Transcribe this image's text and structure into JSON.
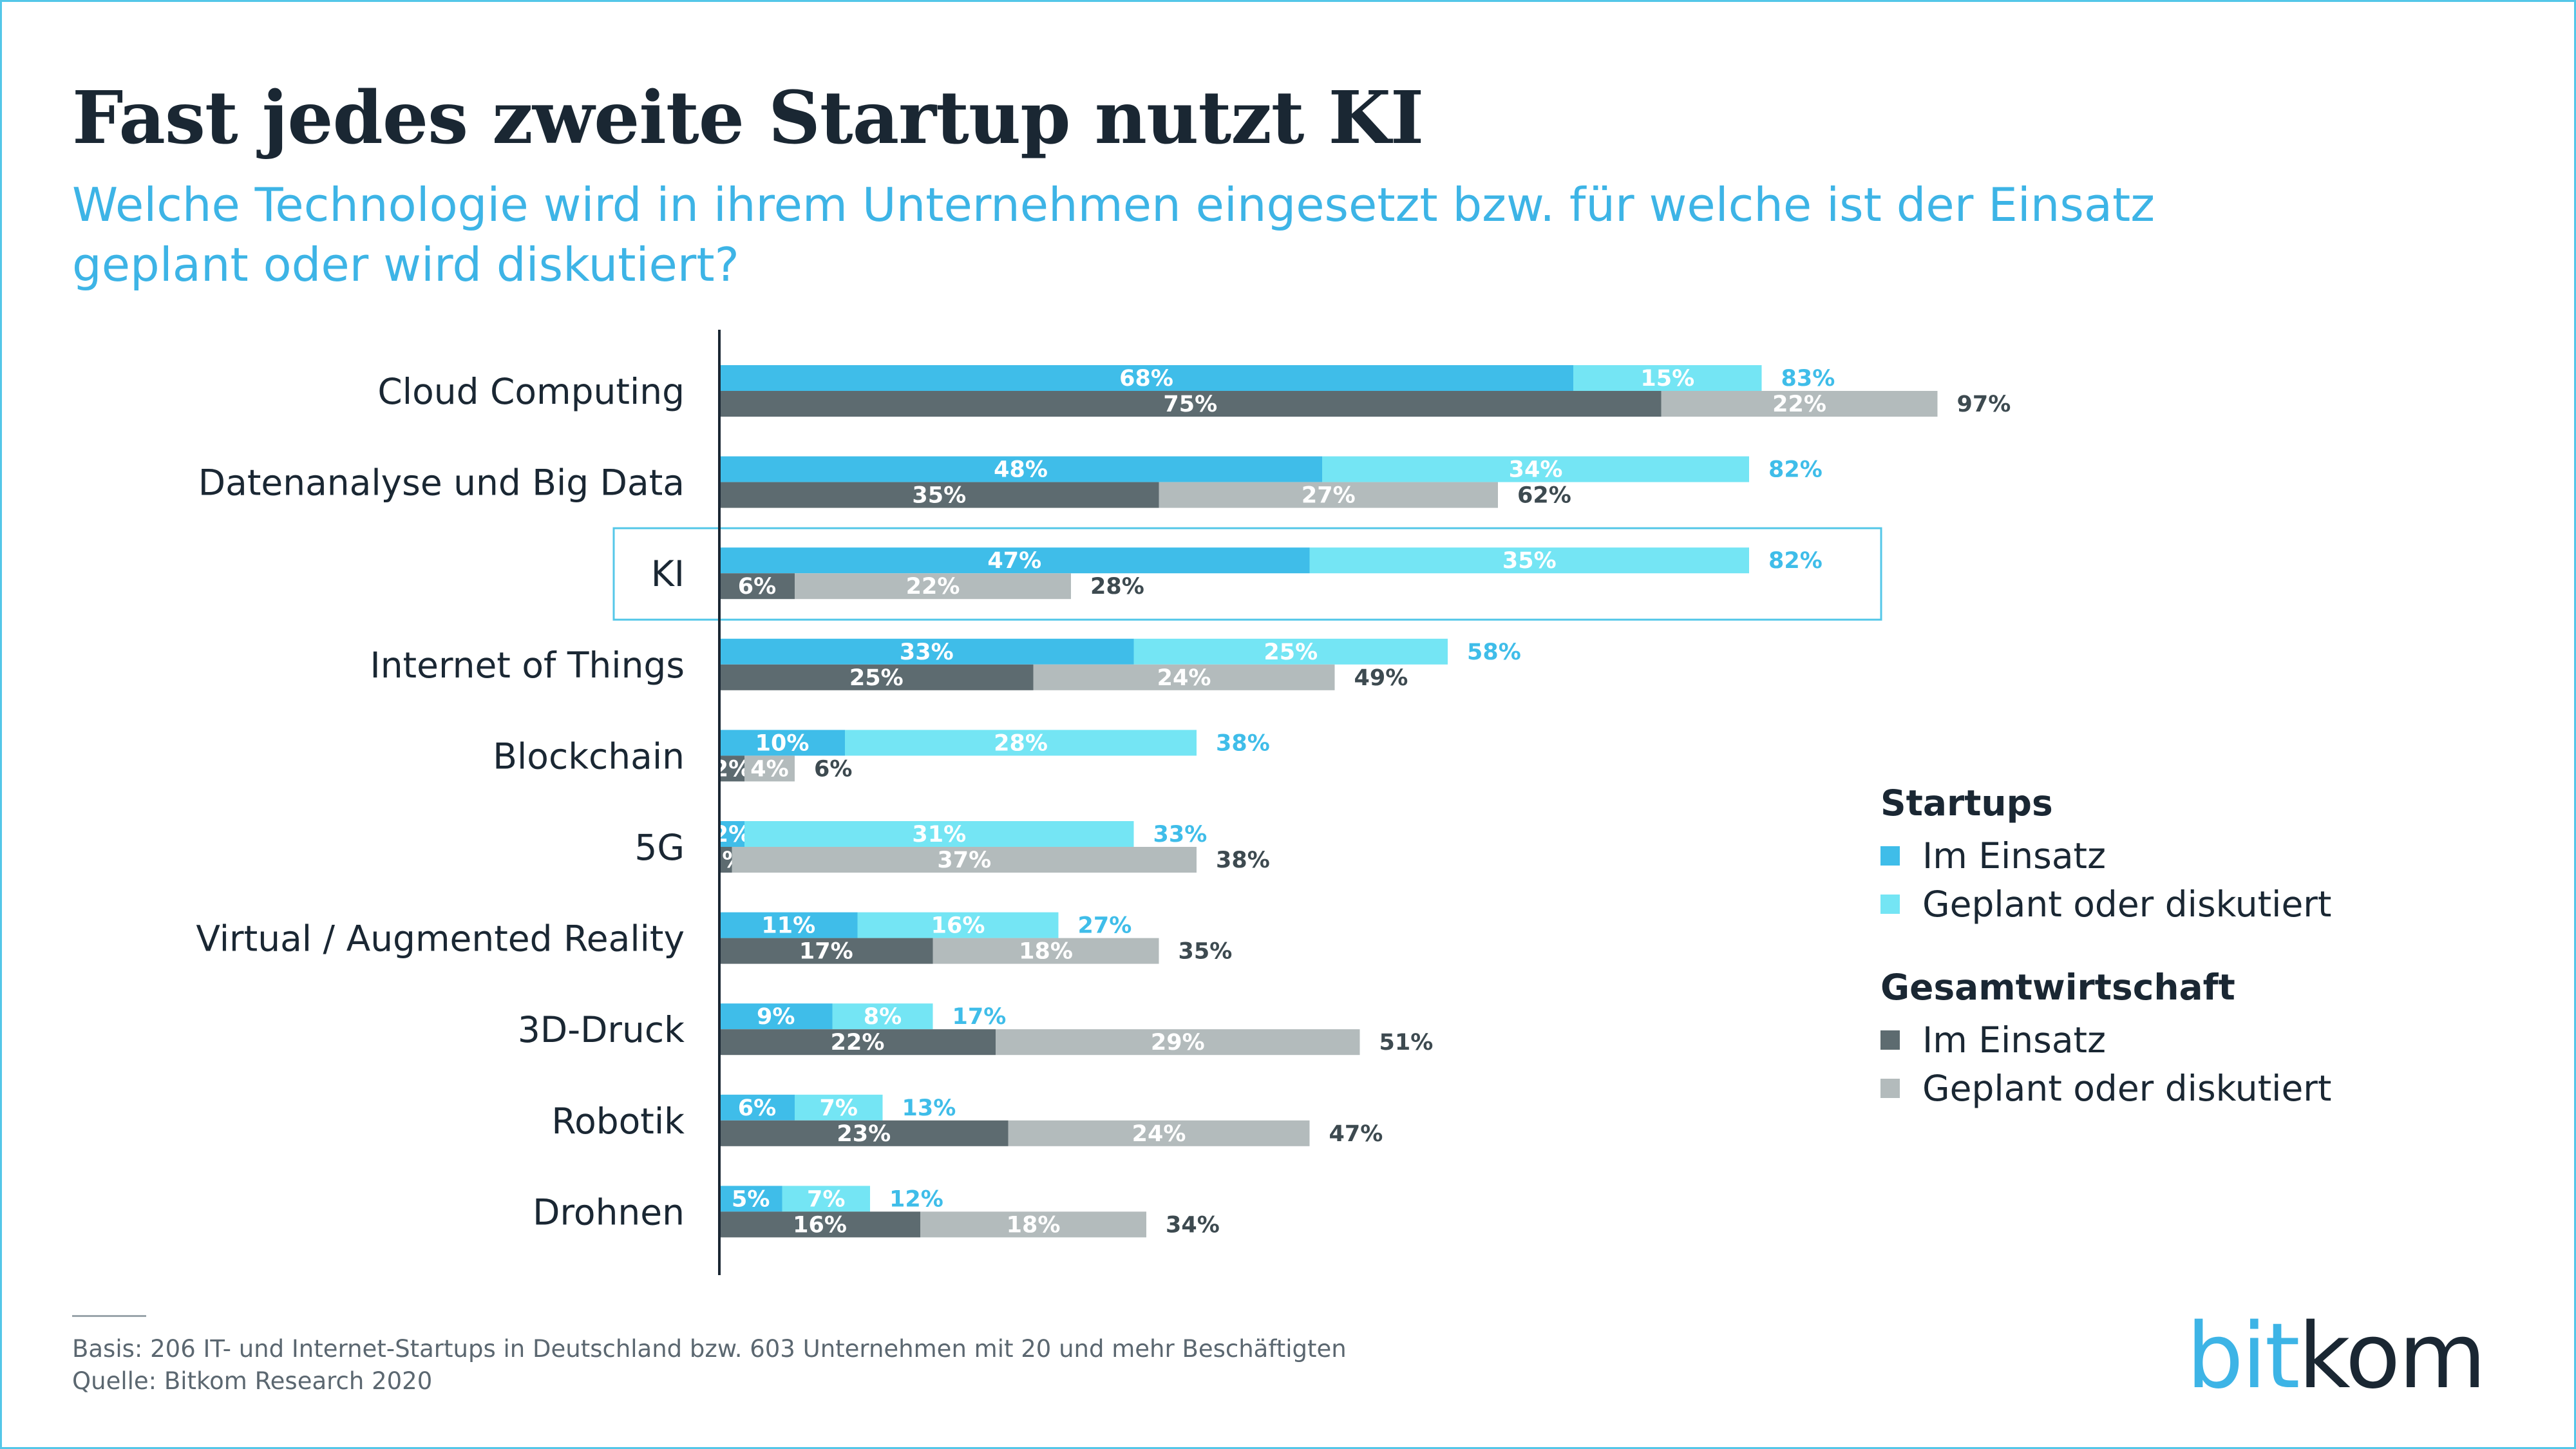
{
  "title": "Fast jedes zweite Startup nutzt KI",
  "subtitle": "Welche Technologie wird in ihrem Unternehmen eingesetzt bzw. für welche ist der Einsatz geplant oder wird diskutiert?",
  "chart_data": {
    "type": "bar",
    "orientation": "horizontal",
    "stacked": true,
    "highlighted_category": "KI",
    "categories": [
      "Cloud Computing",
      "Datenanalyse und Big Data",
      "KI",
      "Internet of Things",
      "Blockchain",
      "5G",
      "Virtual / Augmented Reality",
      "3D-Druck",
      "Robotik",
      "Drohnen"
    ],
    "groups": [
      {
        "name": "Startups",
        "series": [
          {
            "name": "Im Einsatz",
            "color": "#3fbde9",
            "values": [
              68,
              48,
              47,
              33,
              10,
              2,
              11,
              9,
              6,
              5
            ]
          },
          {
            "name": "Geplant oder diskutiert",
            "color": "#74e5f4",
            "values": [
              15,
              34,
              35,
              25,
              28,
              31,
              16,
              8,
              7,
              7
            ]
          }
        ],
        "totals": [
          83,
          82,
          82,
          58,
          38,
          33,
          27,
          17,
          13,
          12
        ],
        "total_color": "#3fbde9"
      },
      {
        "name": "Gesamtwirtschaft",
        "series": [
          {
            "name": "Im Einsatz",
            "color": "#5d6b70",
            "values": [
              75,
              35,
              6,
              25,
              2,
              1,
              17,
              22,
              23,
              16
            ]
          },
          {
            "name": "Geplant oder diskutiert",
            "color": "#b3bbbc",
            "values": [
              22,
              27,
              22,
              24,
              4,
              37,
              18,
              29,
              24,
              18
            ]
          }
        ],
        "totals": [
          97,
          62,
          28,
          49,
          6,
          38,
          35,
          51,
          47,
          34
        ],
        "total_color": "#3d4a50"
      }
    ],
    "value_suffix": "%",
    "xlim": [
      0,
      100
    ],
    "grid": false,
    "legend_position": "right"
  },
  "legend": {
    "groups": [
      {
        "title": "Startups",
        "items": [
          {
            "label": "Im Einsatz",
            "color": "#3fbde9"
          },
          {
            "label": "Geplant oder diskutiert",
            "color": "#74e5f4"
          }
        ]
      },
      {
        "title": "Gesamtwirtschaft",
        "items": [
          {
            "label": "Im Einsatz",
            "color": "#5d6b70"
          },
          {
            "label": "Geplant oder diskutiert",
            "color": "#b3bbbc"
          }
        ]
      }
    ]
  },
  "footnote": {
    "line1": "Basis: 206 IT- und Internet-Startups in Deutschland bzw. 603 Unternehmen mit 20 und mehr Beschäftigten",
    "line2": "Quelle: Bitkom Research 2020"
  },
  "logo": {
    "part1": "bit",
    "part2": "kom"
  }
}
